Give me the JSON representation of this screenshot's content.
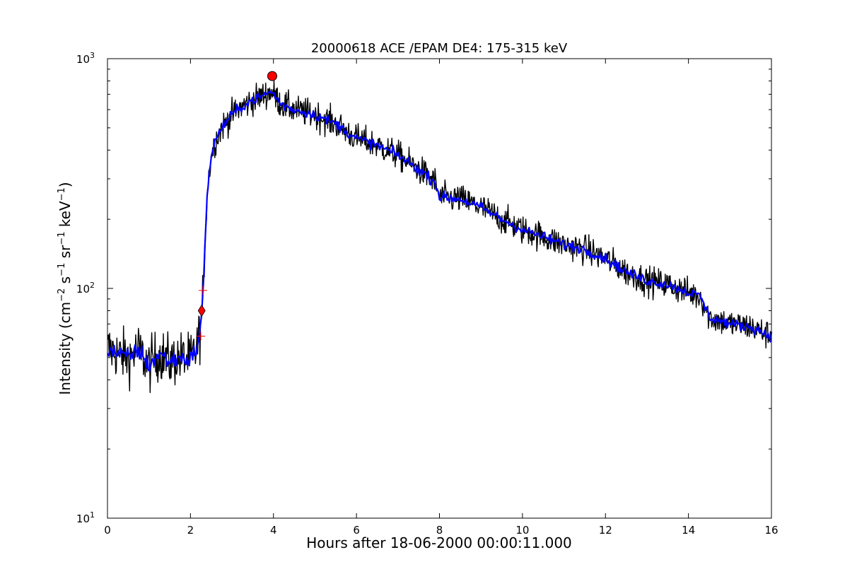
{
  "chart_data": {
    "type": "line",
    "title": "20000618 ACE /EPAM DE4: 175-315 keV",
    "xlabel": "Hours after 18-06-2000 00:00:11.000",
    "ylabel": {
      "prefix": "Intensity (cm",
      "s1": "−2",
      "mid1": " s",
      "s2": "−1",
      "mid2": " sr",
      "s3": "−1",
      "mid3": " keV",
      "s4": "−1",
      "suffix": ")"
    },
    "xlim": [
      0,
      16
    ],
    "ylim": [
      10,
      1000
    ],
    "yscale": "log",
    "x_ticks": [
      0,
      2,
      4,
      6,
      8,
      10,
      12,
      14,
      16
    ],
    "x_tick_labels": [
      "0",
      "2",
      "4",
      "6",
      "8",
      "10",
      "12",
      "14",
      "16"
    ],
    "y_ticks": [
      {
        "value": 10,
        "base": "10",
        "exp": "1"
      },
      {
        "value": 100,
        "base": "10",
        "exp": "2"
      },
      {
        "value": 1000,
        "base": "10",
        "exp": "3"
      }
    ],
    "grid": false,
    "series": [
      {
        "style": "raw",
        "color": "#000000",
        "x": [
          0.0,
          0.25,
          0.5,
          0.75,
          1.0,
          1.25,
          1.5,
          1.75,
          2.0,
          2.15,
          2.25,
          2.32,
          2.4,
          2.5,
          2.6,
          2.75,
          3.0,
          3.25,
          3.5,
          3.75,
          3.95,
          4.2,
          4.5,
          5.0,
          5.5,
          6.0,
          6.5,
          7.0,
          7.5,
          7.9,
          8.0,
          8.5,
          9.0,
          9.5,
          10.0,
          10.5,
          11.0,
          11.5,
          12.0,
          12.5,
          13.0,
          13.5,
          14.0,
          14.3,
          14.5,
          15.0,
          15.5,
          16.0
        ],
        "y": [
          55,
          52,
          50,
          54,
          46,
          52,
          48,
          50,
          49,
          55,
          68,
          110,
          260,
          380,
          440,
          500,
          570,
          620,
          660,
          690,
          720,
          630,
          600,
          570,
          520,
          450,
          420,
          380,
          330,
          290,
          250,
          245,
          225,
          200,
          180,
          168,
          155,
          148,
          135,
          118,
          108,
          104,
          96,
          92,
          75,
          70,
          68,
          62
        ],
        "noise": 0.26
      },
      {
        "style": "smoothed",
        "color": "#0000ff",
        "x": [
          0.0,
          0.25,
          0.5,
          0.75,
          1.0,
          1.25,
          1.5,
          1.75,
          2.0,
          2.15,
          2.25,
          2.32,
          2.4,
          2.5,
          2.6,
          2.75,
          3.0,
          3.25,
          3.5,
          3.75,
          3.95,
          4.2,
          4.5,
          5.0,
          5.5,
          6.0,
          6.5,
          7.0,
          7.5,
          7.9,
          8.0,
          8.5,
          9.0,
          9.5,
          10.0,
          10.5,
          11.0,
          11.5,
          12.0,
          12.5,
          13.0,
          13.5,
          14.0,
          14.3,
          14.5,
          15.0,
          15.5,
          16.0
        ],
        "y": [
          55,
          52,
          50,
          54,
          46,
          52,
          48,
          50,
          49,
          55,
          68,
          110,
          260,
          380,
          440,
          500,
          570,
          620,
          660,
          690,
          720,
          630,
          600,
          570,
          520,
          450,
          420,
          380,
          330,
          290,
          250,
          245,
          225,
          200,
          180,
          168,
          155,
          148,
          135,
          118,
          108,
          104,
          96,
          92,
          75,
          70,
          68,
          62
        ],
        "noise": 0.09
      }
    ],
    "markers": [
      {
        "type": "circle",
        "x": 3.97,
        "y": 840,
        "color": "#ff0000"
      },
      {
        "type": "diamond",
        "x": 2.27,
        "y": 80,
        "color": "#ff0000"
      },
      {
        "type": "plus",
        "x": 2.3,
        "y": 98,
        "color": "#ff0000"
      },
      {
        "type": "plus",
        "x": 2.25,
        "y": 62,
        "color": "#ff0000"
      }
    ]
  }
}
